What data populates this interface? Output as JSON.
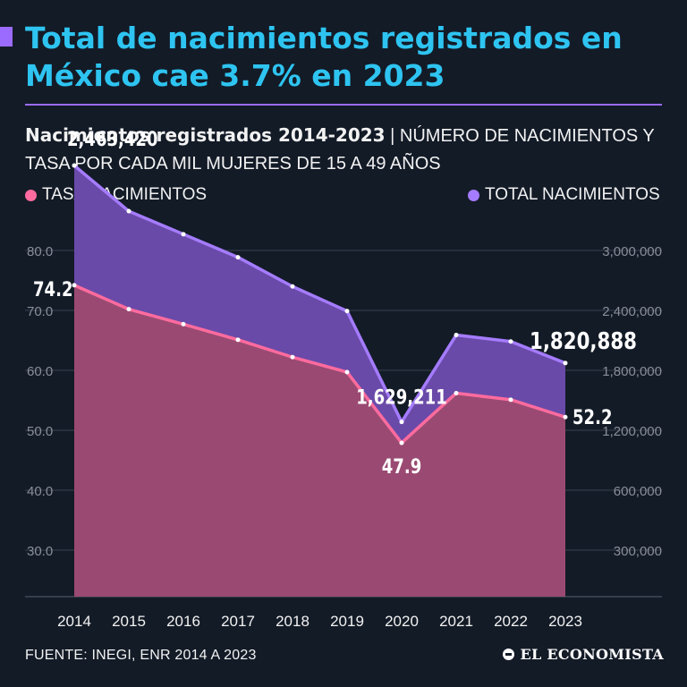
{
  "headline": "Total de nacimientos registrados en México cae 3.7% en 2023",
  "subtitle": {
    "bold": "Nacimientos registrados 2014-2023",
    "separator": "|",
    "rest": "NÚMERO DE NACIMIENTOS Y TASA POR CADA MIL MUJERES DE 15 A 49 AÑOS"
  },
  "legend": {
    "rate": "TASA NACIMIENTOS",
    "total": "TOTAL NACIMIENTOS"
  },
  "footer": {
    "source": "FUENTE: INEGI, ENR 2014 A 2023",
    "brand": "EL ECONOMISTA"
  },
  "colors": {
    "background": "#131b27",
    "headline": "#2ec4f1",
    "accent": "#9b6bff",
    "rate_line": "#ff6b9e",
    "rate_fill": "#9a4a72",
    "total_line": "#a57cff",
    "total_fill": "#6a4aa8",
    "grid": "#3a4250",
    "tick_text": "#8a8f99"
  },
  "chart_data": {
    "type": "area",
    "x": [
      2014,
      2015,
      2016,
      2017,
      2018,
      2019,
      2020,
      2021,
      2022,
      2023
    ],
    "x_tick_labels": [
      "2014",
      "2015",
      "2016",
      "2017",
      "2018",
      "2019",
      "2020",
      "2021",
      "2022",
      "2023"
    ],
    "series": [
      {
        "name": "TASA NACIMIENTOS",
        "axis": "left",
        "values": [
          74.2,
          70.2,
          67.7,
          65.1,
          62.2,
          59.7,
          47.9,
          56.2,
          55.1,
          52.2
        ]
      },
      {
        "name": "TOTAL NACIMIENTOS",
        "axis": "right",
        "values": [
          2463420,
          2315000,
          2240000,
          2165000,
          2070000,
          1990000,
          1629211,
          1912000,
          1891000,
          1820888
        ]
      }
    ],
    "left_axis": {
      "tick_labels": [
        "80.0",
        "70.0",
        "60.0",
        "50.0",
        "40.0",
        "30.0"
      ],
      "ticks": [
        80,
        70,
        60,
        50,
        40,
        30
      ]
    },
    "right_axis": {
      "tick_labels": [
        "3,000,000",
        "2,400,000",
        "1,800,000",
        "1,200,000",
        "600,000",
        "300,000"
      ]
    },
    "annotations": [
      {
        "series": 1,
        "index": 0,
        "text": "2,463,420"
      },
      {
        "series": 0,
        "index": 0,
        "text": "74.2"
      },
      {
        "series": 1,
        "index": 6,
        "text": "1,629,211"
      },
      {
        "series": 0,
        "index": 6,
        "text": "47.9"
      },
      {
        "series": 1,
        "index": 9,
        "text": "1,820,888"
      },
      {
        "series": 0,
        "index": 9,
        "text": "52.2"
      }
    ],
    "grid": true,
    "legend_position": "top"
  }
}
